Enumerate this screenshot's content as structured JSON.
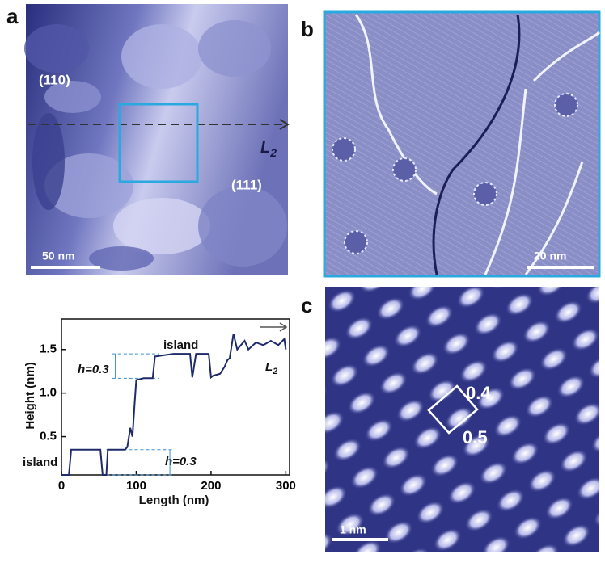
{
  "panels": {
    "a": {
      "label": "a",
      "facet_110": "(110)",
      "facet_111": "(111)",
      "line_label": {
        "main": "L",
        "sub": "2"
      },
      "scale_bar": "50 nm"
    },
    "b": {
      "label": "b",
      "scale_bar": "20 nm"
    },
    "c": {
      "label": "c",
      "spacing_1": "0.4",
      "spacing_2": "0.5",
      "scale_bar": "1 nm"
    }
  },
  "chart_data": {
    "type": "line",
    "x_label": "Length (nm)",
    "y_label": "Height (nm)",
    "annotations": [
      "island",
      "island",
      "h=0.3",
      "h=0.3"
    ],
    "line_label": {
      "main": "L",
      "sub": "2"
    },
    "x": [
      0,
      10,
      13,
      40,
      52,
      55,
      60,
      62,
      85,
      88,
      92,
      95,
      98,
      100,
      110,
      118,
      122,
      125,
      150,
      172,
      175,
      180,
      197,
      200,
      203,
      212,
      218,
      222,
      225,
      230,
      235,
      240,
      245,
      250,
      260,
      270,
      280,
      290,
      298,
      300
    ],
    "values": [
      0.06,
      0.06,
      0.35,
      0.35,
      0.35,
      0.06,
      0.06,
      0.35,
      0.35,
      0.38,
      0.6,
      0.5,
      0.9,
      1.15,
      1.17,
      1.17,
      1.17,
      1.42,
      1.45,
      1.45,
      1.18,
      1.45,
      1.45,
      1.18,
      1.2,
      1.22,
      1.3,
      1.38,
      1.4,
      1.68,
      1.5,
      1.55,
      1.6,
      1.5,
      1.58,
      1.55,
      1.6,
      1.55,
      1.62,
      1.5
    ],
    "color": "#1f2a6b",
    "xlim": [
      0,
      305
    ],
    "ylim": [
      0.06,
      1.85
    ],
    "xticks": [
      0,
      100,
      200,
      300
    ],
    "yticks": [
      0.5,
      {
        "value": 1,
        "label": "1.0"
      },
      1.5
    ]
  }
}
